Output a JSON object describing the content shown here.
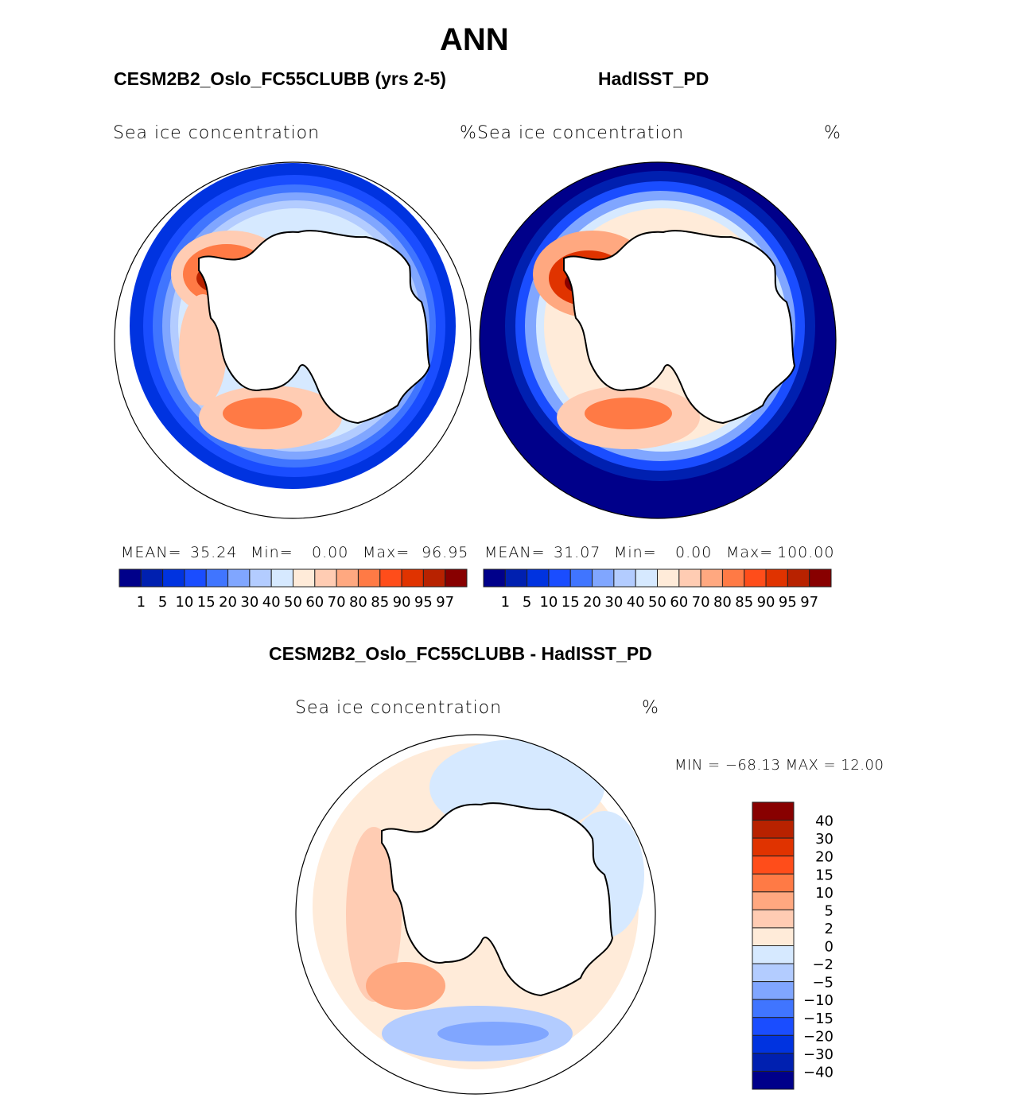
{
  "title": "ANN",
  "panel_left": {
    "title": "CESM2B2_Oslo_FC55CLUBB (yrs 2-5)",
    "variable": "Sea ice concentration",
    "units": "%",
    "mean_label": "MEAN=",
    "mean": "35.24",
    "min_label": "Min=",
    "min": "0.00",
    "max_label": "Max=",
    "max": "96.95"
  },
  "panel_right": {
    "title": "HadISST_PD",
    "variable": "Sea ice concentration",
    "units": "%",
    "mean_label": "MEAN=",
    "mean": "31.07",
    "min_label": "Min=",
    "min": "0.00",
    "max_label": "Max=",
    "max": "100.00"
  },
  "panel_diff": {
    "title": "CESM2B2_Oslo_FC55CLUBB - HadISST_PD",
    "variable": "Sea ice concentration",
    "units": "%",
    "stats": "MIN = −68.13 MAX =  12.00"
  },
  "colorbar_levels": [
    "1",
    "5",
    "10",
    "15",
    "20",
    "30",
    "40",
    "50",
    "60",
    "70",
    "80",
    "85",
    "90",
    "95",
    "97"
  ],
  "diff_levels": [
    "40",
    "30",
    "20",
    "15",
    "10",
    "5",
    "2",
    "0",
    "−2",
    "−5",
    "−10",
    "−15",
    "−20",
    "−30",
    "−40"
  ],
  "colors": [
    "#00008a",
    "#0020b0",
    "#0033e0",
    "#1a4dff",
    "#4075ff",
    "#80a6ff",
    "#b3ccff",
    "#d6e9ff",
    "#ffebd9",
    "#ffccb3",
    "#ffa880",
    "#ff7a45",
    "#ff4d1a",
    "#e03300",
    "#b82200",
    "#880000"
  ]
}
